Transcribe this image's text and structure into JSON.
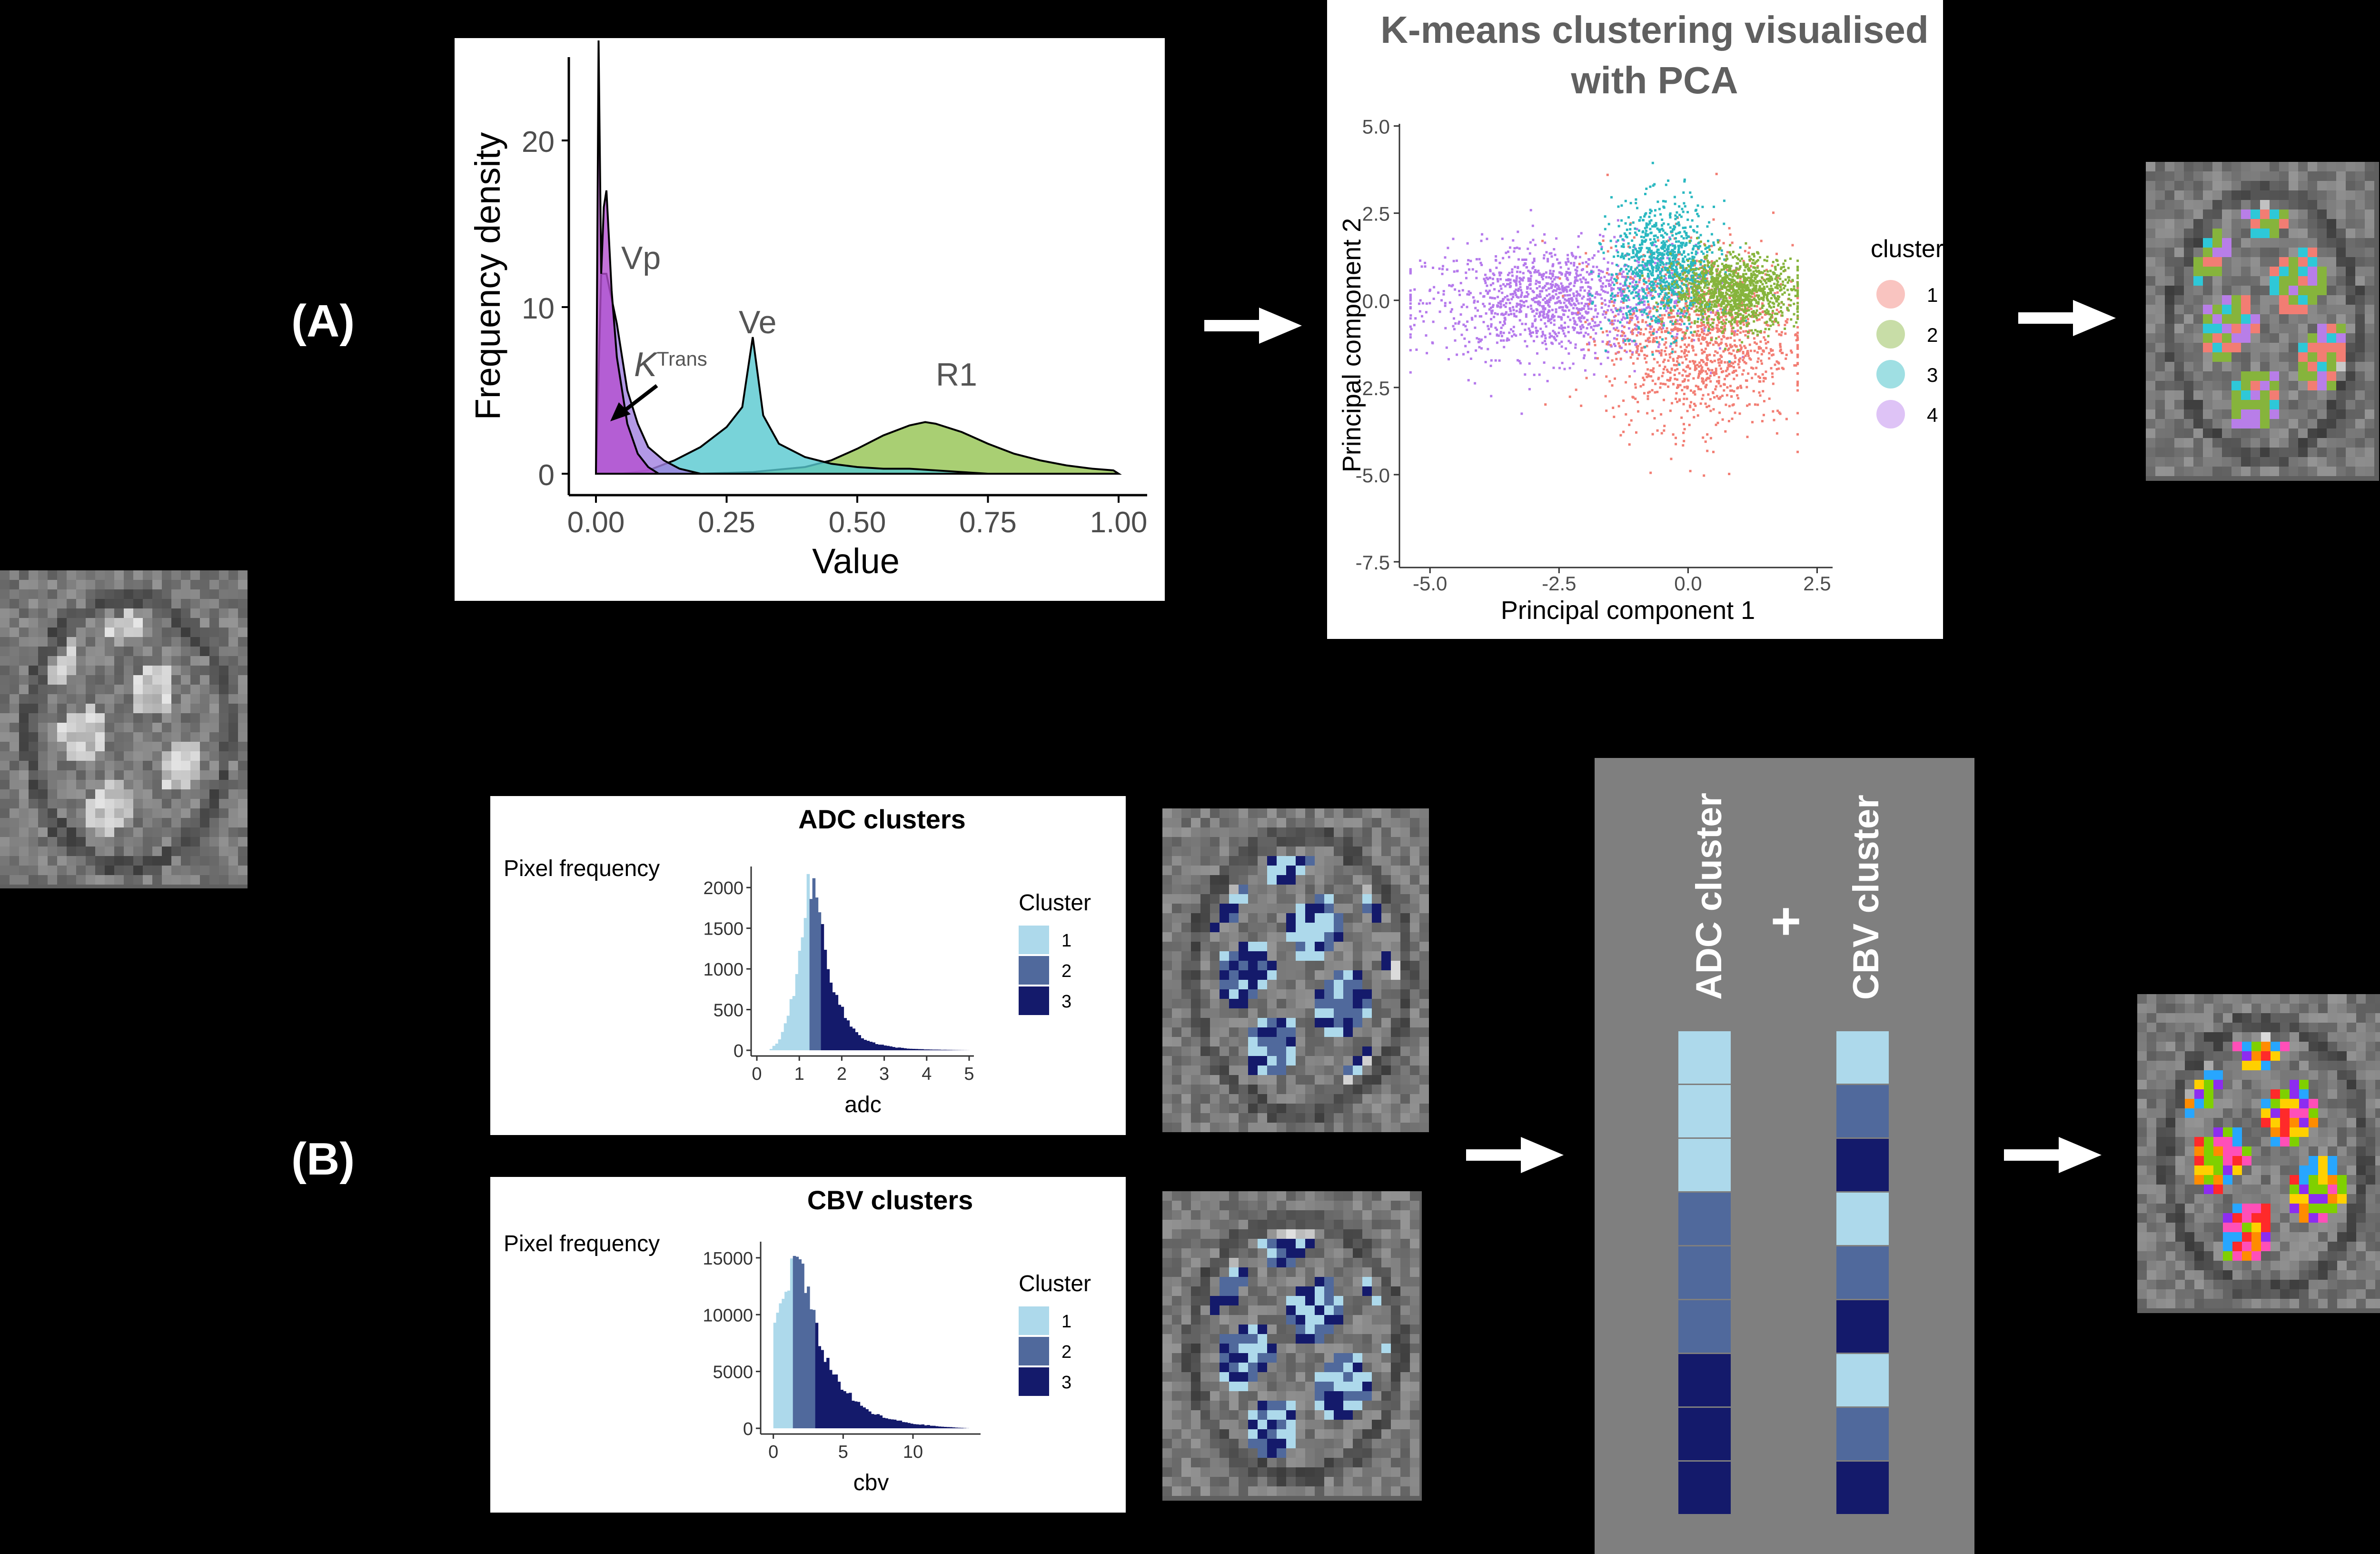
{
  "panels": {
    "a_label": "(A)",
    "b_label": "(B)"
  },
  "colors": {
    "background": "#000000",
    "vp": "#b44fd0",
    "ktrans": "#a080e0",
    "ve": "#56c8cf",
    "r1": "#93c350",
    "cluster1": "#f27d73",
    "cluster2": "#86b43c",
    "cluster3": "#2ab8c0",
    "cluster4": "#b579ec",
    "light_blue": "#add9eb",
    "mid_blue": "#50699c",
    "dark_blue": "#141a6b",
    "grey_box": "#7f7f7f"
  },
  "combo": {
    "adc_title": "ADC cluster",
    "plus": "+",
    "cbv_title": "CBV cluster",
    "adc_cells": [
      1,
      1,
      1,
      2,
      2,
      2,
      3,
      3,
      3
    ],
    "cbv_cells": [
      1,
      2,
      3,
      1,
      2,
      3,
      1,
      2,
      3
    ]
  },
  "chart_data": [
    {
      "type": "area",
      "id": "density",
      "xlabel": "Value",
      "ylabel": "Frequency density",
      "xlim": [
        0,
        1
      ],
      "ylim": [
        0,
        25
      ],
      "xticks": [
        "0.00",
        "0.25",
        "0.50",
        "0.75",
        "1.00"
      ],
      "yticks": [
        "0",
        "10",
        "20"
      ],
      "annotations": {
        "vp": "Vp",
        "ve": "Ve",
        "r1": "R1",
        "ktrans_base": "K",
        "ktrans_sup": "Trans"
      },
      "series": [
        {
          "name": "Vp",
          "x": [
            0,
            0.005,
            0.01,
            0.015,
            0.02,
            0.025,
            0.03,
            0.04,
            0.06,
            0.08,
            0.1,
            0.12
          ],
          "y": [
            0,
            26,
            12,
            16,
            17,
            14,
            11,
            7,
            3,
            1.2,
            0.4,
            0
          ]
        },
        {
          "name": "KTrans",
          "x": [
            0,
            0.01,
            0.02,
            0.04,
            0.06,
            0.08,
            0.1,
            0.13,
            0.16,
            0.2
          ],
          "y": [
            0,
            12,
            12,
            9,
            5,
            3,
            1.6,
            0.8,
            0.3,
            0
          ]
        },
        {
          "name": "Ve",
          "x": [
            0.05,
            0.1,
            0.15,
            0.2,
            0.25,
            0.28,
            0.3,
            0.32,
            0.35,
            0.4,
            0.45,
            0.5,
            0.55,
            0.6,
            0.65,
            0.7,
            0.75
          ],
          "y": [
            0,
            0.2,
            0.8,
            1.6,
            2.8,
            4,
            8.2,
            3.5,
            1.8,
            1,
            0.6,
            0.4,
            0.3,
            0.3,
            0.2,
            0.1,
            0
          ]
        },
        {
          "name": "R1",
          "x": [
            0.2,
            0.3,
            0.4,
            0.45,
            0.5,
            0.55,
            0.6,
            0.63,
            0.65,
            0.7,
            0.75,
            0.8,
            0.85,
            0.9,
            0.95,
            0.99,
            1.0
          ],
          "y": [
            0,
            0.1,
            0.4,
            0.8,
            1.5,
            2.3,
            2.9,
            3.1,
            3.0,
            2.5,
            1.8,
            1.2,
            0.8,
            0.5,
            0.3,
            0.2,
            0
          ]
        }
      ]
    },
    {
      "type": "scatter",
      "id": "pca",
      "title_line1": "K-means clustering visualised",
      "title_line2": "with PCA",
      "xlabel": "Principal component 1",
      "ylabel": "Principal component 2",
      "xlim": [
        -5.5,
        2.8
      ],
      "ylim": [
        -7.5,
        5.2
      ],
      "xticks": [
        "-5.0",
        "-2.5",
        "0.0",
        "2.5"
      ],
      "xtick_values": [
        -5,
        -2.5,
        0,
        2.5
      ],
      "yticks": [
        "5.0",
        "2.5",
        "0.0",
        "-2.5",
        "-5.0",
        "-7.5"
      ],
      "ytick_values": [
        5,
        2.5,
        0,
        -2.5,
        -5,
        -7.5
      ],
      "legend_title": "cluster",
      "legend": [
        "1",
        "2",
        "3",
        "4"
      ],
      "clusters": [
        {
          "name": "1",
          "center": [
            0.2,
            -1.0
          ],
          "spread": [
            0.9,
            1.3
          ]
        },
        {
          "name": "2",
          "center": [
            0.9,
            0.3
          ],
          "spread": [
            0.6,
            0.5
          ]
        },
        {
          "name": "3",
          "center": [
            -0.5,
            1.0
          ],
          "spread": [
            0.5,
            0.9
          ]
        },
        {
          "name": "4",
          "center": [
            -2.5,
            0.0
          ],
          "spread": [
            1.3,
            0.8
          ]
        }
      ]
    },
    {
      "type": "bar",
      "id": "adc",
      "title": "ADC clusters",
      "ylabel": "Pixel frequency",
      "xlabel": "adc",
      "xlim": [
        0,
        5
      ],
      "ylim": [
        0,
        2200
      ],
      "xticks": [
        "0",
        "1",
        "2",
        "3",
        "4",
        "5"
      ],
      "yticks": [
        "0",
        "500",
        "1000",
        "1500",
        "2000"
      ],
      "legend_title": "Cluster",
      "legend": [
        "1",
        "2",
        "3"
      ],
      "breaks": [
        1.25,
        1.5
      ],
      "x": [
        0.3,
        0.5,
        0.7,
        0.9,
        1.0,
        1.1,
        1.2,
        1.25,
        1.3,
        1.4,
        1.5,
        1.6,
        1.7,
        1.8,
        2.0,
        2.2,
        2.5,
        2.8,
        3.2,
        3.6,
        4.0,
        4.5,
        5.0
      ],
      "y": [
        0,
        100,
        350,
        800,
        1200,
        1600,
        1950,
        2100,
        2000,
        1900,
        1600,
        1300,
        1000,
        800,
        500,
        300,
        150,
        80,
        40,
        20,
        10,
        5,
        0
      ]
    },
    {
      "type": "bar",
      "id": "cbv",
      "title": "CBV clusters",
      "ylabel": "Pixel frequency",
      "xlabel": "cbv",
      "xlim": [
        -0.5,
        14.5
      ],
      "ylim": [
        0,
        16000
      ],
      "xticks": [
        "0",
        "5",
        "10"
      ],
      "yticks": [
        "0",
        "5000",
        "10000",
        "15000"
      ],
      "legend_title": "Cluster",
      "legend": [
        "1",
        "2",
        "3"
      ],
      "breaks": [
        1.5,
        3.0
      ],
      "x": [
        0,
        0.3,
        0.6,
        0.9,
        1.2,
        1.5,
        1.7,
        1.9,
        2.2,
        2.6,
        3.0,
        3.5,
        4.0,
        5.0,
        6.0,
        7.0,
        8.0,
        10.0,
        12.0,
        14.0
      ],
      "y": [
        9000,
        10000,
        11000,
        12500,
        13500,
        15000,
        15500,
        14500,
        13000,
        11000,
        9000,
        7000,
        5500,
        3500,
        2200,
        1400,
        900,
        400,
        150,
        0
      ]
    }
  ]
}
